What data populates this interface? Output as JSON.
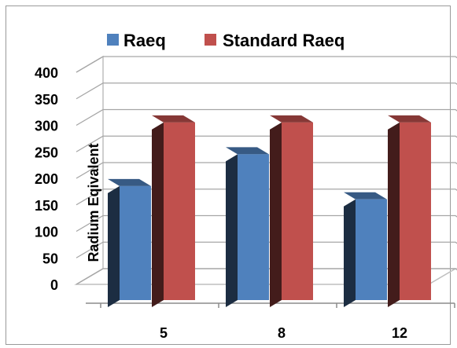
{
  "chart_data": {
    "type": "bar",
    "title": "",
    "xlabel": "",
    "ylabel": "Radium Eqivalent",
    "categories": [
      "5",
      "8",
      "12"
    ],
    "ylim": [
      0,
      400
    ],
    "yticks": [
      0,
      50,
      100,
      150,
      200,
      250,
      300,
      350,
      400
    ],
    "grid": true,
    "legend_position": "top",
    "series": [
      {
        "name": "Raeq",
        "values": [
          215,
          275,
          190
        ],
        "color": "#4f81bd"
      },
      {
        "name": "Standard Raeq",
        "values": [
          335,
          335,
          335
        ],
        "color": "#c0504d"
      }
    ]
  }
}
